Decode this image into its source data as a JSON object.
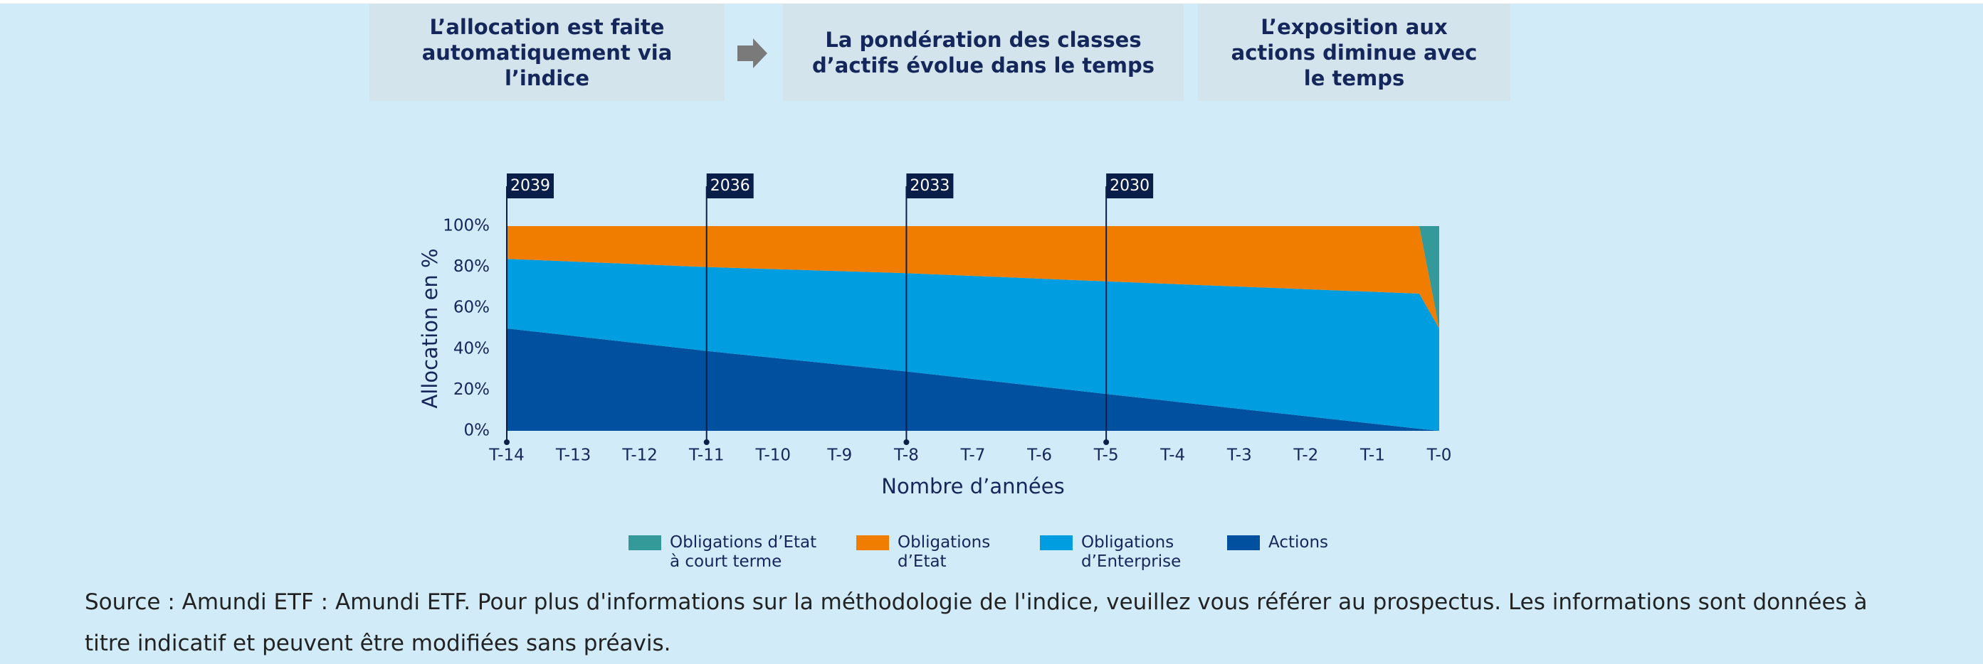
{
  "steps": [
    "L’allocation est faite automatiquement via l’indice",
    "La pondération des classes d’actifs évolue dans le temps",
    "L’exposition aux actions diminue avec le temps"
  ],
  "chart_data": {
    "type": "stacked_area",
    "y_label": "Allocation en %",
    "x_label": "Nombre d’années",
    "x": [
      -14,
      -11,
      -8,
      -5,
      -0.3,
      0
    ],
    "xlim": [
      -14,
      0
    ],
    "xticks": [
      {
        "value": -14,
        "label": "T-14"
      },
      {
        "value": -13,
        "label": "T-13"
      },
      {
        "value": -12,
        "label": "T-12"
      },
      {
        "value": -11,
        "label": "T-11"
      },
      {
        "value": -10,
        "label": "T-10"
      },
      {
        "value": -9,
        "label": "T-9"
      },
      {
        "value": -8,
        "label": "T-8"
      },
      {
        "value": -7,
        "label": "T-7"
      },
      {
        "value": -6,
        "label": "T-6"
      },
      {
        "value": -5,
        "label": "T-5"
      },
      {
        "value": -4,
        "label": "T-4"
      },
      {
        "value": -3,
        "label": "T-3"
      },
      {
        "value": -2,
        "label": "T-2"
      },
      {
        "value": -1,
        "label": "T-1"
      },
      {
        "value": 0,
        "label": "T-0"
      }
    ],
    "ylim": [
      0,
      100
    ],
    "yticks": [
      {
        "value": 0,
        "label": "0%"
      },
      {
        "value": 20,
        "label": "20%"
      },
      {
        "value": 40,
        "label": "40%"
      },
      {
        "value": 60,
        "label": "60%"
      },
      {
        "value": 80,
        "label": "80%"
      },
      {
        "value": 100,
        "label": "100%"
      }
    ],
    "series": [
      {
        "name": "Obligations d’Etat\nà court terme",
        "color": "#339999",
        "values": [
          0,
          0,
          0,
          0,
          0,
          50
        ]
      },
      {
        "name": "Obligations\nd’Etat",
        "color": "#f07d00",
        "values": [
          16,
          20,
          23,
          27,
          33,
          0
        ]
      },
      {
        "name": "Obligations\nd’Enterprise",
        "color": "#009ee0",
        "values": [
          34,
          41,
          48,
          55,
          66,
          50
        ]
      },
      {
        "name": "Actions",
        "color": "#0050a0",
        "values": [
          50,
          39,
          29,
          18,
          1,
          0
        ]
      }
    ],
    "markers": [
      {
        "x": -14,
        "label": "2039"
      },
      {
        "x": -11,
        "label": "2036"
      },
      {
        "x": -8,
        "label": "2033"
      },
      {
        "x": -5,
        "label": "2030"
      }
    ]
  },
  "source": "Source : Amundi ETF : Amundi ETF. Pour plus d'informations sur la méthodologie de l'indice, veuillez vous référer au prospectus. Les informations sont données à titre indicatif et peuvent être modifiées sans préavis."
}
